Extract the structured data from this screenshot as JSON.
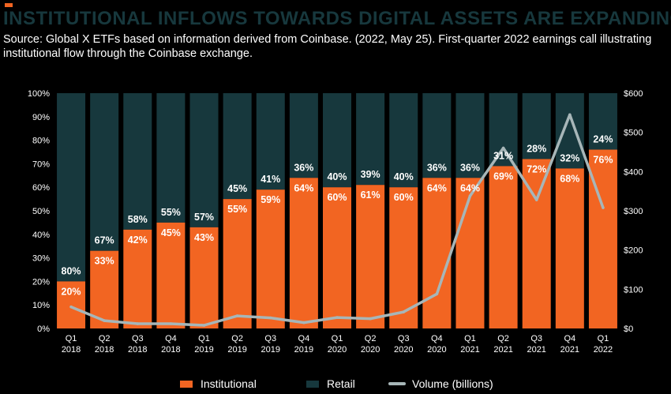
{
  "header": {
    "title": "INSTITUTIONAL INFLOWS TOWARDS DIGITAL ASSETS ARE EXPANDING",
    "subtitle": "Source: Global X ETFs based on information derived from Coinbase. (2022, May 25). First-quarter 2022 earnings call illustrating institutional flow through the Coinbase exchange."
  },
  "colors": {
    "institutional": "#f26522",
    "retail": "#17383d",
    "volume": "#a7b6b8",
    "title": "#17383d"
  },
  "chart_data": {
    "type": "bar",
    "stacked": true,
    "categories": [
      "Q1 2018",
      "Q2 2018",
      "Q3 2018",
      "Q4 2018",
      "Q1 2019",
      "Q2 2019",
      "Q3 2019",
      "Q4 2019",
      "Q1 2020",
      "Q2 2020",
      "Q3 2020",
      "Q4 2020",
      "Q1 2021",
      "Q2 2021",
      "Q3 2021",
      "Q4 2021",
      "Q1 2022"
    ],
    "category_lines": [
      [
        "Q1",
        "2018"
      ],
      [
        "Q2",
        "2018"
      ],
      [
        "Q3",
        "2018"
      ],
      [
        "Q4",
        "2018"
      ],
      [
        "Q1",
        "2019"
      ],
      [
        "Q2",
        "2019"
      ],
      [
        "Q3",
        "2019"
      ],
      [
        "Q4",
        "2019"
      ],
      [
        "Q1",
        "2020"
      ],
      [
        "Q2",
        "2020"
      ],
      [
        "Q3",
        "2020"
      ],
      [
        "Q4",
        "2020"
      ],
      [
        "Q1",
        "2021"
      ],
      [
        "Q2",
        "2021"
      ],
      [
        "Q3",
        "2021"
      ],
      [
        "Q4",
        "2021"
      ],
      [
        "Q1",
        "2022"
      ]
    ],
    "series": [
      {
        "name": "Institutional",
        "values": [
          20,
          33,
          42,
          45,
          43,
          55,
          59,
          64,
          60,
          61,
          60,
          64,
          64,
          69,
          72,
          68,
          76
        ]
      },
      {
        "name": "Retail",
        "values": [
          80,
          67,
          58,
          55,
          57,
          45,
          41,
          36,
          40,
          39,
          40,
          36,
          36,
          31,
          28,
          32,
          24
        ]
      },
      {
        "name": "Volume (billions)",
        "type": "line",
        "axis": "right",
        "values": [
          55,
          20,
          12,
          12,
          8,
          32,
          27,
          15,
          28,
          25,
          42,
          88,
          338,
          460,
          328,
          545,
          308
        ]
      }
    ],
    "left_axis": {
      "ylim": [
        0,
        100
      ],
      "ticks": [
        "0%",
        "10%",
        "20%",
        "30%",
        "40%",
        "50%",
        "60%",
        "70%",
        "80%",
        "90%",
        "100%"
      ]
    },
    "right_axis": {
      "ylim": [
        0,
        600
      ],
      "ticks": [
        "$0",
        "$100",
        "$200",
        "$300",
        "$400",
        "$500",
        "$600"
      ]
    },
    "legend_position": "bottom",
    "grid": false
  },
  "legend": {
    "institutional": "Institutional",
    "retail": "Retail",
    "volume": "Volume (billions)"
  }
}
